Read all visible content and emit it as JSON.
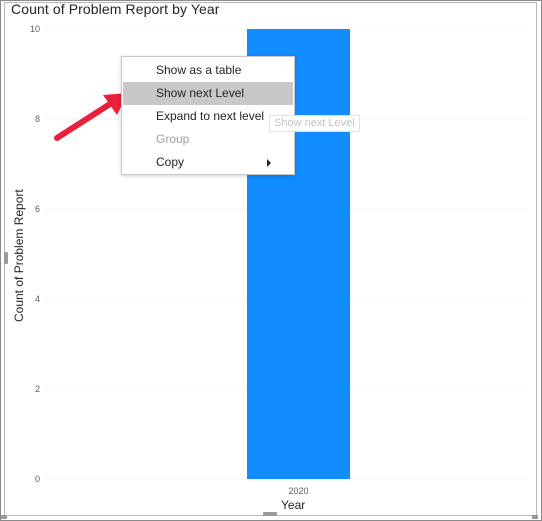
{
  "chart_data": {
    "type": "bar",
    "title": "Count of Problem Report by Year",
    "xlabel": "Year",
    "ylabel": "Count of Problem Report",
    "categories": [
      "2020"
    ],
    "values": [
      10
    ],
    "ylim": [
      0,
      10
    ],
    "yticks": [
      "0",
      "2",
      "4",
      "6",
      "8",
      "10"
    ],
    "grid": true,
    "bar_color": "#118DFF"
  },
  "context_menu": {
    "items": [
      {
        "label": "Show as a table",
        "state": "normal"
      },
      {
        "label": "Show next Level",
        "state": "highlighted"
      },
      {
        "label": "Expand to next level",
        "state": "normal"
      },
      {
        "label": "Group",
        "state": "disabled"
      },
      {
        "label": "Copy",
        "state": "submenu"
      }
    ]
  },
  "tooltip": {
    "text": "Show next Level"
  },
  "annotation": {
    "arrow_color": "#E8203A"
  }
}
